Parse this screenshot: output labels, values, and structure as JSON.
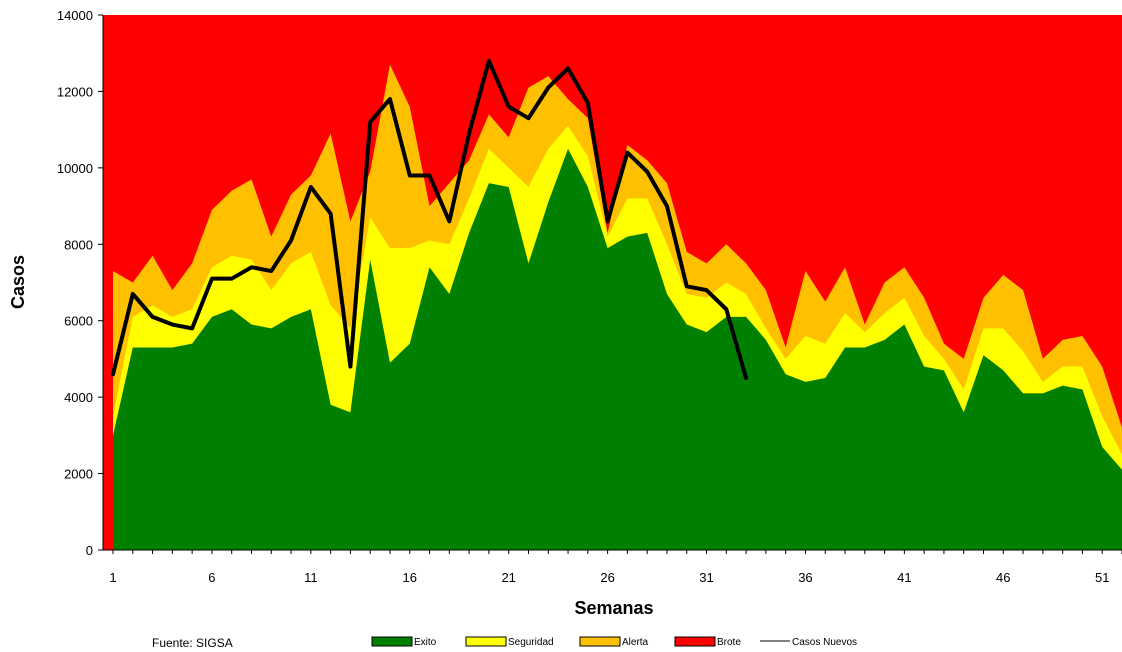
{
  "source": "Fuente: SIGSA",
  "chart_data": {
    "type": "area",
    "xlabel": "Semanas",
    "ylabel": "Casos",
    "xlim": [
      1,
      52
    ],
    "ylim": [
      0,
      14000
    ],
    "x": [
      1,
      2,
      3,
      4,
      5,
      6,
      7,
      8,
      9,
      10,
      11,
      12,
      13,
      14,
      15,
      16,
      17,
      18,
      19,
      20,
      21,
      22,
      23,
      24,
      25,
      26,
      27,
      28,
      29,
      30,
      31,
      32,
      33,
      34,
      35,
      36,
      37,
      38,
      39,
      40,
      41,
      42,
      43,
      44,
      45,
      46,
      47,
      48,
      49,
      50,
      51,
      52
    ],
    "xticks": [
      1,
      6,
      11,
      16,
      21,
      26,
      31,
      36,
      41,
      46,
      51
    ],
    "yticks": [
      0,
      2000,
      4000,
      6000,
      8000,
      10000,
      12000,
      14000
    ],
    "series": [
      {
        "name": "Exito",
        "color": "#008000",
        "values": [
          3000,
          5300,
          5300,
          5300,
          5400,
          6100,
          6300,
          5900,
          5800,
          6100,
          6300,
          3800,
          3600,
          7600,
          4900,
          5400,
          7400,
          6700,
          8300,
          9600,
          9500,
          7500,
          9100,
          10500,
          9500,
          7900,
          8200,
          8300,
          6700,
          5900,
          5700,
          6100,
          6100,
          5500,
          4600,
          4400,
          4500,
          5300,
          5300,
          5500,
          5900,
          4800,
          4700,
          3600,
          5100,
          4700,
          4100,
          4100,
          4300,
          4200,
          2700,
          2100
        ]
      },
      {
        "name": "Seguridad",
        "color": "#FFFF00",
        "values": [
          3500,
          6100,
          6400,
          6100,
          6300,
          7400,
          7700,
          7600,
          6800,
          7500,
          7800,
          6400,
          5800,
          8700,
          7900,
          7900,
          8100,
          8000,
          9200,
          10500,
          10000,
          9500,
          10500,
          11100,
          10300,
          8200,
          9200,
          9200,
          8000,
          6700,
          6600,
          7000,
          6700,
          5800,
          5000,
          5600,
          5400,
          6200,
          5700,
          6200,
          6600,
          5600,
          5000,
          4200,
          5800,
          5800,
          5200,
          4400,
          4800,
          4800,
          3500,
          2500
        ]
      },
      {
        "name": "Alerta",
        "color": "#FFC000",
        "values": [
          7300,
          7000,
          7700,
          6800,
          7500,
          8900,
          9400,
          9700,
          8200,
          9300,
          9800,
          10900,
          8600,
          9900,
          12700,
          11600,
          9000,
          9600,
          10200,
          11400,
          10800,
          12100,
          12400,
          11800,
          11300,
          8300,
          10600,
          10200,
          9600,
          7800,
          7500,
          8000,
          7500,
          6800,
          5300,
          7300,
          6500,
          7400,
          5900,
          7000,
          7400,
          6600,
          5400,
          5000,
          6600,
          7200,
          6800,
          5000,
          5500,
          5600,
          4800,
          3200
        ]
      },
      {
        "name": "Brote",
        "color": "#FF0000",
        "values": [
          14000,
          14000,
          14000,
          14000,
          14000,
          14000,
          14000,
          14000,
          14000,
          14000,
          14000,
          14000,
          14000,
          14000,
          14000,
          14000,
          14000,
          14000,
          14000,
          14000,
          14000,
          14000,
          14000,
          14000,
          14000,
          14000,
          14000,
          14000,
          14000,
          14000,
          14000,
          14000,
          14000,
          14000,
          14000,
          14000,
          14000,
          14000,
          14000,
          14000,
          14000,
          14000,
          14000,
          14000,
          14000,
          14000,
          14000,
          14000,
          14000,
          14000,
          14000,
          14000
        ]
      },
      {
        "name": "Casos Nuevos",
        "type": "line",
        "color": "#000000",
        "x": [
          1,
          2,
          3,
          4,
          5,
          6,
          7,
          8,
          9,
          10,
          11,
          12,
          13,
          14,
          15,
          16,
          17,
          18,
          19,
          20,
          21,
          22,
          23,
          24,
          25,
          26,
          27,
          28,
          29,
          30,
          31,
          32,
          33
        ],
        "values": [
          4600,
          6700,
          6100,
          5900,
          5800,
          7100,
          7100,
          7400,
          7300,
          8100,
          9500,
          8800,
          4800,
          11200,
          11800,
          9800,
          9800,
          8600,
          10900,
          12800,
          11600,
          11300,
          12100,
          12600,
          11700,
          8600,
          10400,
          9900,
          9000,
          6900,
          6800,
          6300,
          4500
        ]
      }
    ]
  }
}
